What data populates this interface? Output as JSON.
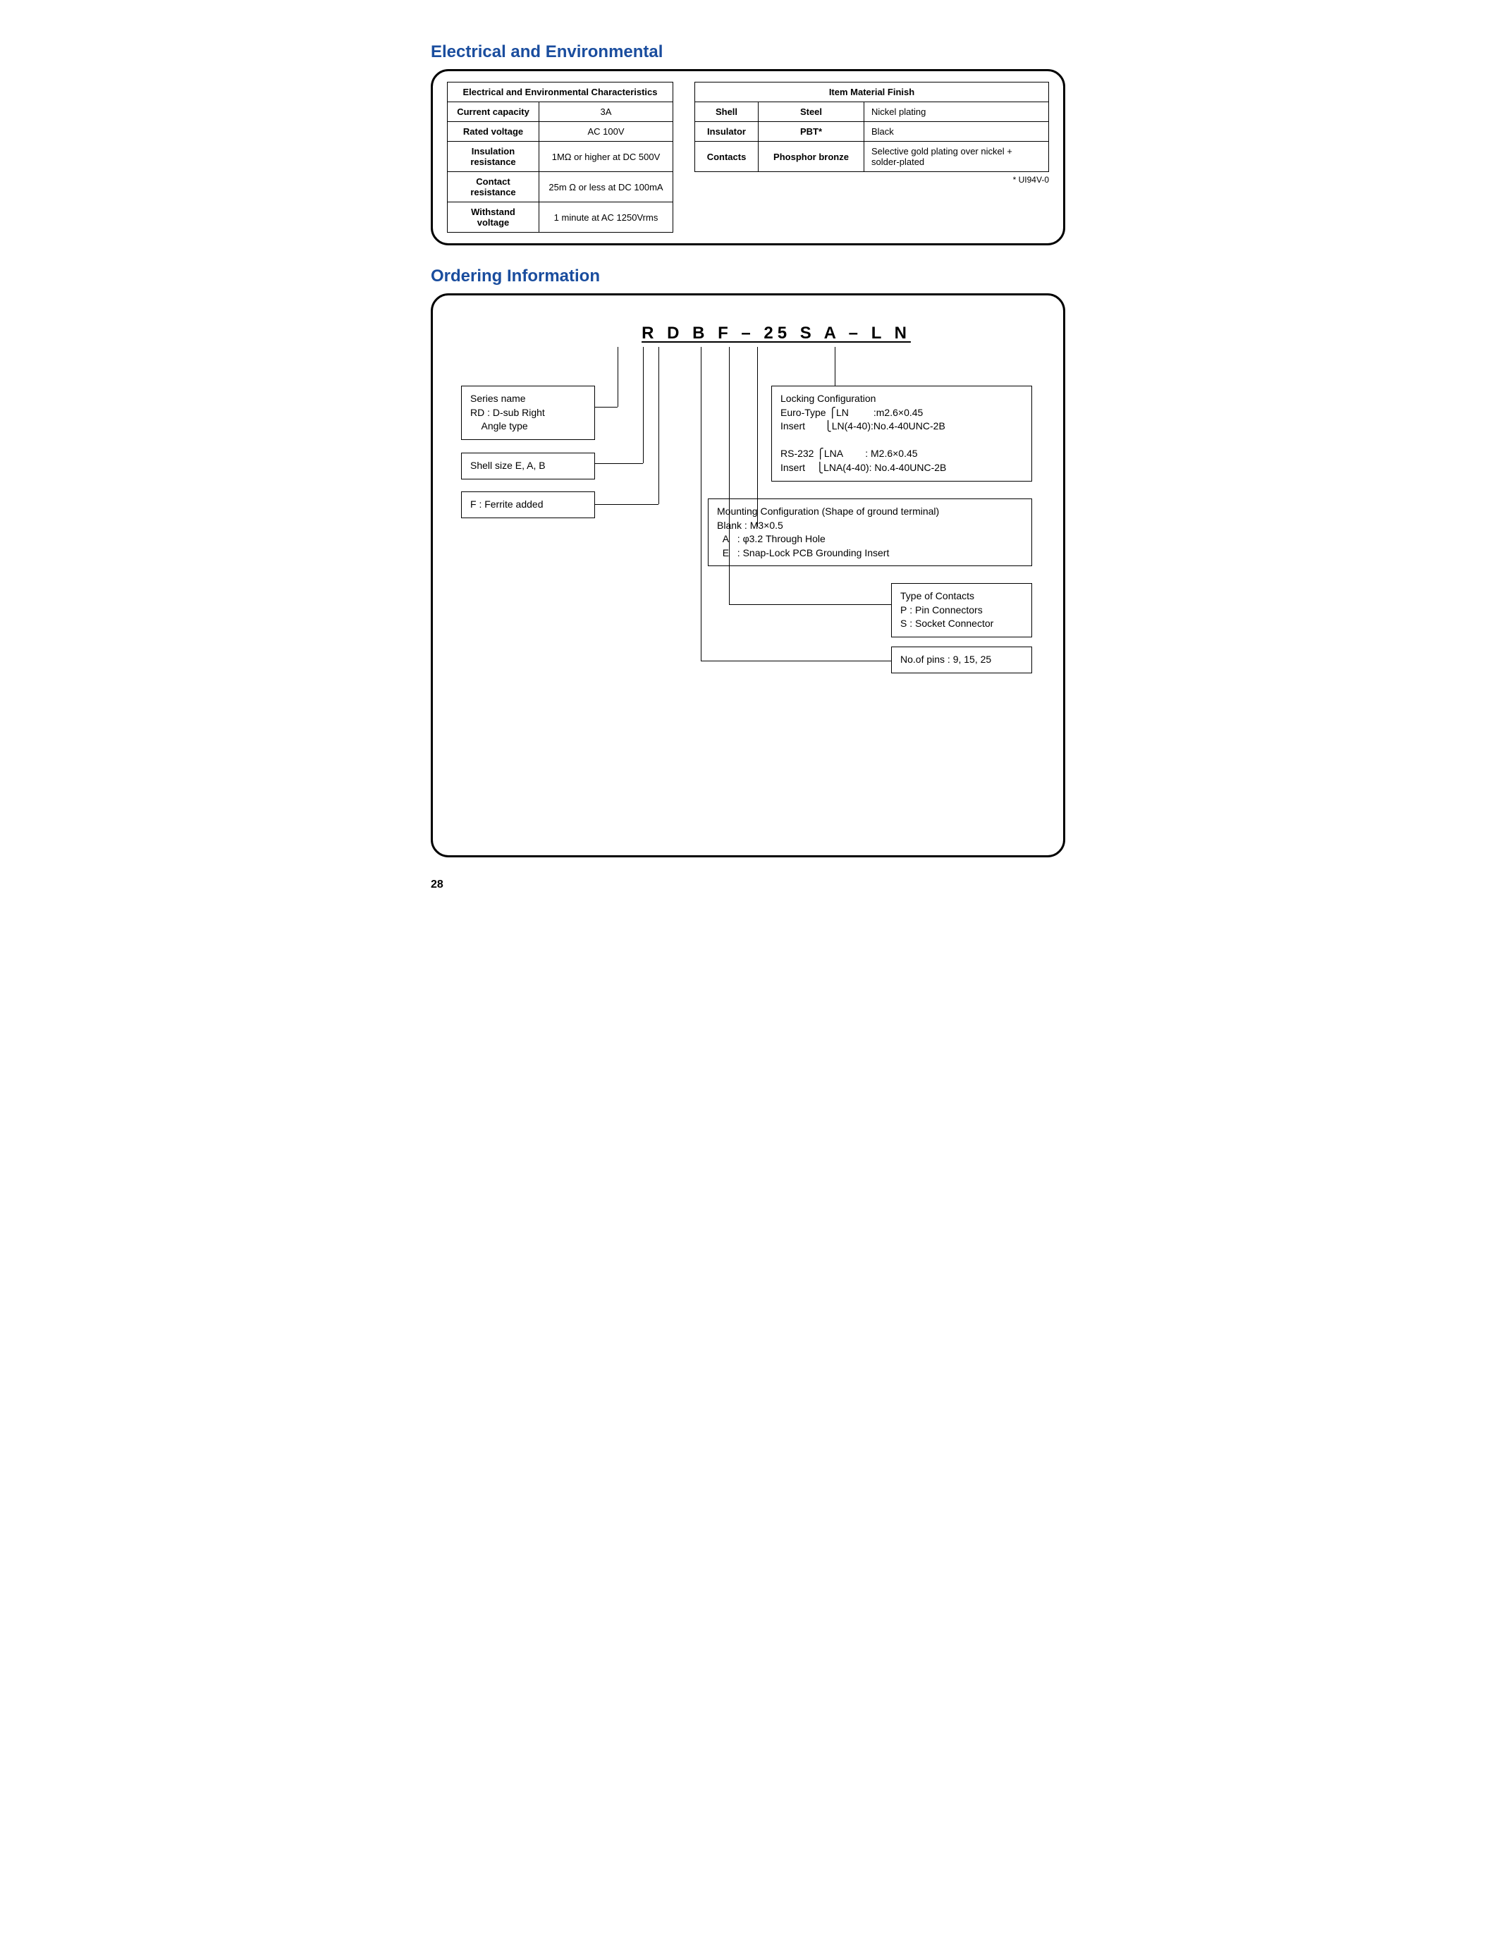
{
  "section1_title": "Electrical and Environmental",
  "table_left": {
    "header": "Electrical and Environmental Characteristics",
    "rows": [
      {
        "label": "Current capacity",
        "value": "3A"
      },
      {
        "label": "Rated voltage",
        "value": "AC 100V"
      },
      {
        "label": "Insulation resistance",
        "value": "1MΩ or higher at DC 500V"
      },
      {
        "label": "Contact resistance",
        "value": "25m Ω or less at DC 100mA"
      },
      {
        "label": "Withstand voltage",
        "value": "1 minute at AC 1250Vrms"
      }
    ]
  },
  "table_right": {
    "header": "Item Material Finish",
    "rows": [
      {
        "c1": "Shell",
        "c2": "Steel",
        "c3": "Nickel plating"
      },
      {
        "c1": "Insulator",
        "c2": "PBT*",
        "c3": "Black"
      },
      {
        "c1": "Contacts",
        "c2": "Phosphor bronze",
        "c3": "Selective gold plating over nickel + solder-plated"
      }
    ],
    "footnote": "* UI94V-0"
  },
  "section2_title": "Ordering Information",
  "part_code": "R D B F – 25 S A – L N",
  "boxes": {
    "series": "Series name\nRD : D-sub Right\n    Angle type",
    "shell": "Shell size E, A, B",
    "ferrite": "F : Ferrite added",
    "locking": "Locking Configuration\nEuro-Type ⎧LN         :m2.6×0.45\nInsert       ⎩LN(4-40):No.4-40UNC-2B\n\nRS-232 ⎧LNA        : M2.6×0.45\nInsert    ⎩LNA(4-40): No.4-40UNC-2B",
    "mounting": "Mounting Configuration (Shape of ground terminal)\nBlank : M3×0.5\n  A   : φ3.2 Through Hole\n  E   : Snap-Lock PCB Grounding Insert",
    "typecontacts": "Type of Contacts\nP : Pin Connectors\nS : Socket Connector",
    "pins": "No.of pins : 9, 15, 25"
  },
  "page_number": "28"
}
